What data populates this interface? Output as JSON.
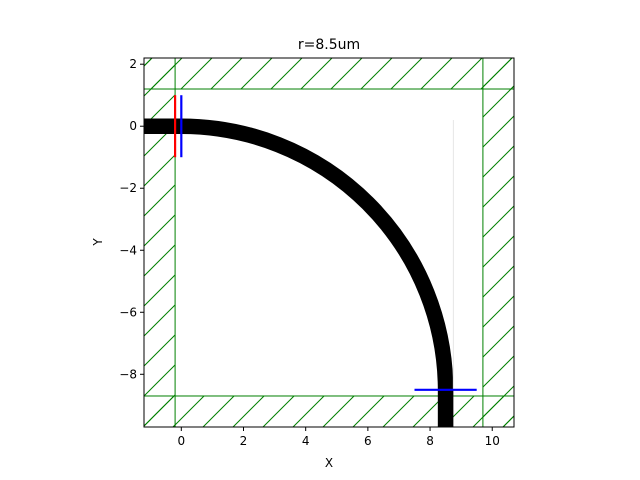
{
  "chart_data": {
    "type": "line",
    "title": "r=8.5um",
    "xlabel": "X",
    "ylabel": "Y",
    "xlim": [
      -1.2,
      10.7
    ],
    "ylim": [
      -9.7,
      2.2
    ],
    "x_ticks": [
      0,
      2,
      4,
      6,
      8,
      10
    ],
    "y_ticks": [
      2,
      0,
      -2,
      -4,
      -6,
      -8
    ],
    "x_tick_labels": [
      "0",
      "2",
      "4",
      "6",
      "8",
      "10"
    ],
    "y_tick_labels": [
      "2",
      "0",
      "−2",
      "−4",
      "−6",
      "−8"
    ],
    "grid": false,
    "waveguide": {
      "color": "#000000",
      "width_um": 0.5,
      "straight_in": {
        "x0": -1.2,
        "x1": 0.0,
        "y": 0.0
      },
      "bend": {
        "center": [
          0.0,
          -8.5
        ],
        "radius": 8.5,
        "start_deg": 90,
        "end_deg": 0
      },
      "straight_out": {
        "x": 8.5,
        "y0": -8.5,
        "y1": -9.7
      }
    },
    "pml_regions": [
      {
        "name": "top",
        "x0": -1.2,
        "x1": 10.7,
        "y0": 1.2,
        "y1": 2.2
      },
      {
        "name": "bottom",
        "x0": -1.2,
        "x1": 10.7,
        "y0": -9.7,
        "y1": -8.7
      },
      {
        "name": "left",
        "x0": -1.2,
        "x1": -0.2,
        "y0": -9.7,
        "y1": 2.2
      },
      {
        "name": "right",
        "x0": 9.7,
        "x1": 10.7,
        "y0": -9.7,
        "y1": 2.2
      }
    ],
    "pml_color": "#008000",
    "source": {
      "color": "#ff0000",
      "x": -0.2,
      "y0": -1.0,
      "y1": 1.0
    },
    "monitors": [
      {
        "name": "input",
        "color": "#0000ff",
        "x0": 0.0,
        "x1": 0.0,
        "y0": -1.0,
        "y1": 1.0
      },
      {
        "name": "output",
        "color": "#0000ff",
        "x0": 7.5,
        "x1": 9.5,
        "y0": -8.5,
        "y1": -8.5
      }
    ],
    "faint_line": {
      "color": "#e6e6e6",
      "x": 8.75,
      "y0": 0.2,
      "y1": -8.5
    }
  }
}
